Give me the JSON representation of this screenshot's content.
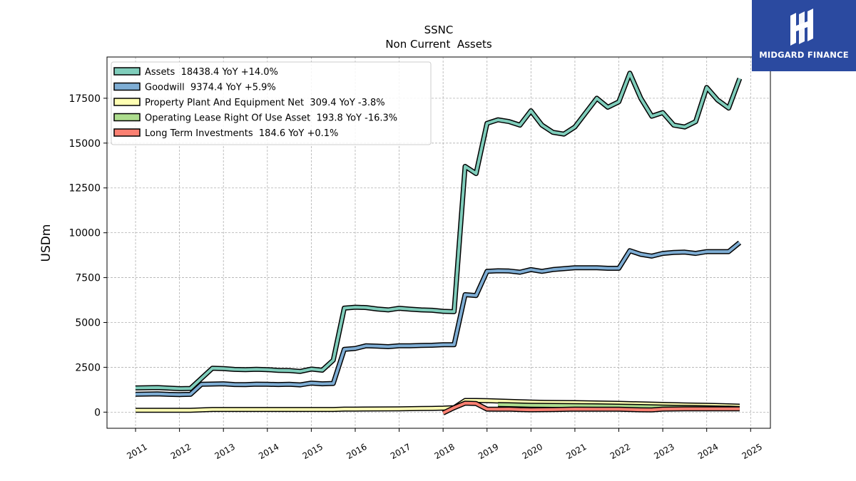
{
  "brand": {
    "name": "MIDGARD FINANCE",
    "logo_icon": "midgard-logo-icon",
    "background": "#2b4aa0"
  },
  "chart_data": {
    "type": "line",
    "title": "SSNC",
    "subtitle": "Non Current  Assets",
    "ylabel": "USDm",
    "xlabel": "",
    "xlim": [
      2010.35,
      2025.45
    ],
    "ylim": [
      -900,
      19800
    ],
    "yticks": [
      0,
      2500,
      5000,
      7500,
      10000,
      12500,
      15000,
      17500
    ],
    "ytick_labels": [
      "0",
      "2500",
      "5000",
      "7500",
      "10000",
      "12500",
      "15000",
      "17500"
    ],
    "xticks": [
      2011,
      2012,
      2013,
      2014,
      2015,
      2016,
      2017,
      2018,
      2019,
      2020,
      2021,
      2022,
      2023,
      2024,
      2025
    ],
    "xtick_labels": [
      "2011",
      "2012",
      "2013",
      "2014",
      "2015",
      "2016",
      "2017",
      "2018",
      "2019",
      "2020",
      "2021",
      "2022",
      "2023",
      "2024",
      "2025"
    ],
    "grid": true,
    "legend_position": "top-left",
    "series": [
      {
        "name": "Assets  18438.4 YoY +14.0%",
        "color": "#7fcdbb",
        "points": [
          [
            2011.0,
            1350
          ],
          [
            2011.5,
            1370
          ],
          [
            2011.75,
            1340
          ],
          [
            2012.0,
            1310
          ],
          [
            2012.25,
            1320
          ],
          [
            2012.75,
            2450
          ],
          [
            2013.0,
            2430
          ],
          [
            2013.25,
            2380
          ],
          [
            2013.5,
            2370
          ],
          [
            2013.75,
            2390
          ],
          [
            2014.0,
            2370
          ],
          [
            2014.25,
            2330
          ],
          [
            2014.5,
            2320
          ],
          [
            2014.75,
            2270
          ],
          [
            2015.0,
            2400
          ],
          [
            2015.25,
            2340
          ],
          [
            2015.5,
            2900
          ],
          [
            2015.75,
            5800
          ],
          [
            2016.0,
            5850
          ],
          [
            2016.25,
            5830
          ],
          [
            2016.5,
            5750
          ],
          [
            2016.75,
            5700
          ],
          [
            2017.0,
            5790
          ],
          [
            2017.25,
            5740
          ],
          [
            2017.5,
            5700
          ],
          [
            2017.75,
            5680
          ],
          [
            2018.0,
            5620
          ],
          [
            2018.25,
            5600
          ],
          [
            2018.5,
            13700
          ],
          [
            2018.75,
            13300
          ],
          [
            2019.0,
            16100
          ],
          [
            2019.25,
            16300
          ],
          [
            2019.5,
            16200
          ],
          [
            2019.75,
            16000
          ],
          [
            2020.0,
            16800
          ],
          [
            2020.25,
            16000
          ],
          [
            2020.5,
            15600
          ],
          [
            2020.75,
            15500
          ],
          [
            2021.0,
            15900
          ],
          [
            2021.25,
            16700
          ],
          [
            2021.5,
            17500
          ],
          [
            2021.75,
            17000
          ],
          [
            2022.0,
            17300
          ],
          [
            2022.25,
            18900
          ],
          [
            2022.5,
            17500
          ],
          [
            2022.75,
            16500
          ],
          [
            2023.0,
            16700
          ],
          [
            2023.25,
            16000
          ],
          [
            2023.5,
            15900
          ],
          [
            2023.75,
            16200
          ],
          [
            2024.0,
            18100
          ],
          [
            2024.25,
            17400
          ],
          [
            2024.5,
            16950
          ],
          [
            2024.75,
            18600
          ]
        ]
      },
      {
        "name": "Goodwill  9374.4 YoY +5.9%",
        "color": "#7eadd4",
        "points": [
          [
            2011.0,
            1000
          ],
          [
            2011.5,
            1020
          ],
          [
            2011.75,
            990
          ],
          [
            2012.0,
            980
          ],
          [
            2012.25,
            990
          ],
          [
            2012.5,
            1550
          ],
          [
            2013.0,
            1580
          ],
          [
            2013.25,
            1540
          ],
          [
            2013.5,
            1530
          ],
          [
            2013.75,
            1560
          ],
          [
            2014.0,
            1550
          ],
          [
            2014.25,
            1540
          ],
          [
            2014.5,
            1550
          ],
          [
            2014.75,
            1520
          ],
          [
            2015.0,
            1620
          ],
          [
            2015.25,
            1580
          ],
          [
            2015.5,
            1600
          ],
          [
            2015.75,
            3500
          ],
          [
            2016.0,
            3550
          ],
          [
            2016.25,
            3700
          ],
          [
            2016.5,
            3680
          ],
          [
            2016.75,
            3650
          ],
          [
            2017.0,
            3700
          ],
          [
            2017.25,
            3700
          ],
          [
            2017.5,
            3720
          ],
          [
            2017.75,
            3730
          ],
          [
            2018.0,
            3760
          ],
          [
            2018.25,
            3760
          ],
          [
            2018.5,
            6550
          ],
          [
            2018.75,
            6500
          ],
          [
            2019.0,
            7850
          ],
          [
            2019.25,
            7880
          ],
          [
            2019.5,
            7870
          ],
          [
            2019.75,
            7800
          ],
          [
            2020.0,
            7950
          ],
          [
            2020.25,
            7850
          ],
          [
            2020.5,
            7950
          ],
          [
            2020.75,
            8000
          ],
          [
            2021.0,
            8050
          ],
          [
            2021.25,
            8050
          ],
          [
            2021.5,
            8050
          ],
          [
            2021.75,
            8020
          ],
          [
            2022.0,
            8020
          ],
          [
            2022.25,
            9000
          ],
          [
            2022.5,
            8800
          ],
          [
            2022.75,
            8700
          ],
          [
            2023.0,
            8850
          ],
          [
            2023.25,
            8900
          ],
          [
            2023.5,
            8920
          ],
          [
            2023.75,
            8850
          ],
          [
            2024.0,
            8950
          ],
          [
            2024.25,
            8950
          ],
          [
            2024.5,
            8950
          ],
          [
            2024.75,
            9450
          ]
        ]
      },
      {
        "name": "Property Plant And Equipment Net  309.4 YoY -3.8%",
        "color": "#ffffb3",
        "points": [
          [
            2011.0,
            100
          ],
          [
            2011.5,
            100
          ],
          [
            2012.0,
            100
          ],
          [
            2012.25,
            100
          ],
          [
            2012.75,
            150
          ],
          [
            2013.0,
            150
          ],
          [
            2014.0,
            150
          ],
          [
            2015.0,
            150
          ],
          [
            2015.5,
            150
          ],
          [
            2015.75,
            170
          ],
          [
            2016.0,
            170
          ],
          [
            2017.0,
            180
          ],
          [
            2017.5,
            200
          ],
          [
            2017.75,
            210
          ],
          [
            2018.0,
            220
          ],
          [
            2018.25,
            250
          ],
          [
            2018.5,
            650
          ],
          [
            2018.75,
            650
          ],
          [
            2019.0,
            640
          ],
          [
            2019.5,
            600
          ],
          [
            2020.0,
            560
          ],
          [
            2020.5,
            540
          ],
          [
            2021.0,
            530
          ],
          [
            2021.5,
            510
          ],
          [
            2022.0,
            490
          ],
          [
            2022.5,
            460
          ],
          [
            2023.0,
            430
          ],
          [
            2023.5,
            400
          ],
          [
            2024.0,
            380
          ],
          [
            2024.5,
            350
          ],
          [
            2024.75,
            330
          ]
        ]
      },
      {
        "name": "Operating Lease Right Of Use Asset  193.8 YoY -16.3%",
        "color": "#addd8e",
        "points": [
          [
            2019.25,
            420
          ],
          [
            2019.5,
            410
          ],
          [
            2020.0,
            380
          ],
          [
            2020.5,
            370
          ],
          [
            2021.0,
            360
          ],
          [
            2021.5,
            350
          ],
          [
            2022.0,
            330
          ],
          [
            2022.5,
            310
          ],
          [
            2023.0,
            280
          ],
          [
            2023.5,
            260
          ],
          [
            2024.0,
            240
          ],
          [
            2024.5,
            220
          ],
          [
            2024.75,
            200
          ]
        ]
      },
      {
        "name": "Long Term Investments  184.6 YoY +0.1%",
        "color": "#fb8072",
        "points": [
          [
            2018.0,
            -50
          ],
          [
            2018.25,
            250
          ],
          [
            2018.5,
            500
          ],
          [
            2018.75,
            480
          ],
          [
            2019.0,
            170
          ],
          [
            2019.25,
            160
          ],
          [
            2019.5,
            170
          ],
          [
            2019.75,
            140
          ],
          [
            2020.0,
            130
          ],
          [
            2020.5,
            140
          ],
          [
            2021.0,
            170
          ],
          [
            2021.5,
            160
          ],
          [
            2022.0,
            160
          ],
          [
            2022.5,
            130
          ],
          [
            2022.75,
            120
          ],
          [
            2023.0,
            170
          ],
          [
            2023.5,
            180
          ],
          [
            2024.0,
            180
          ],
          [
            2024.5,
            185
          ],
          [
            2024.75,
            185
          ]
        ]
      }
    ]
  }
}
